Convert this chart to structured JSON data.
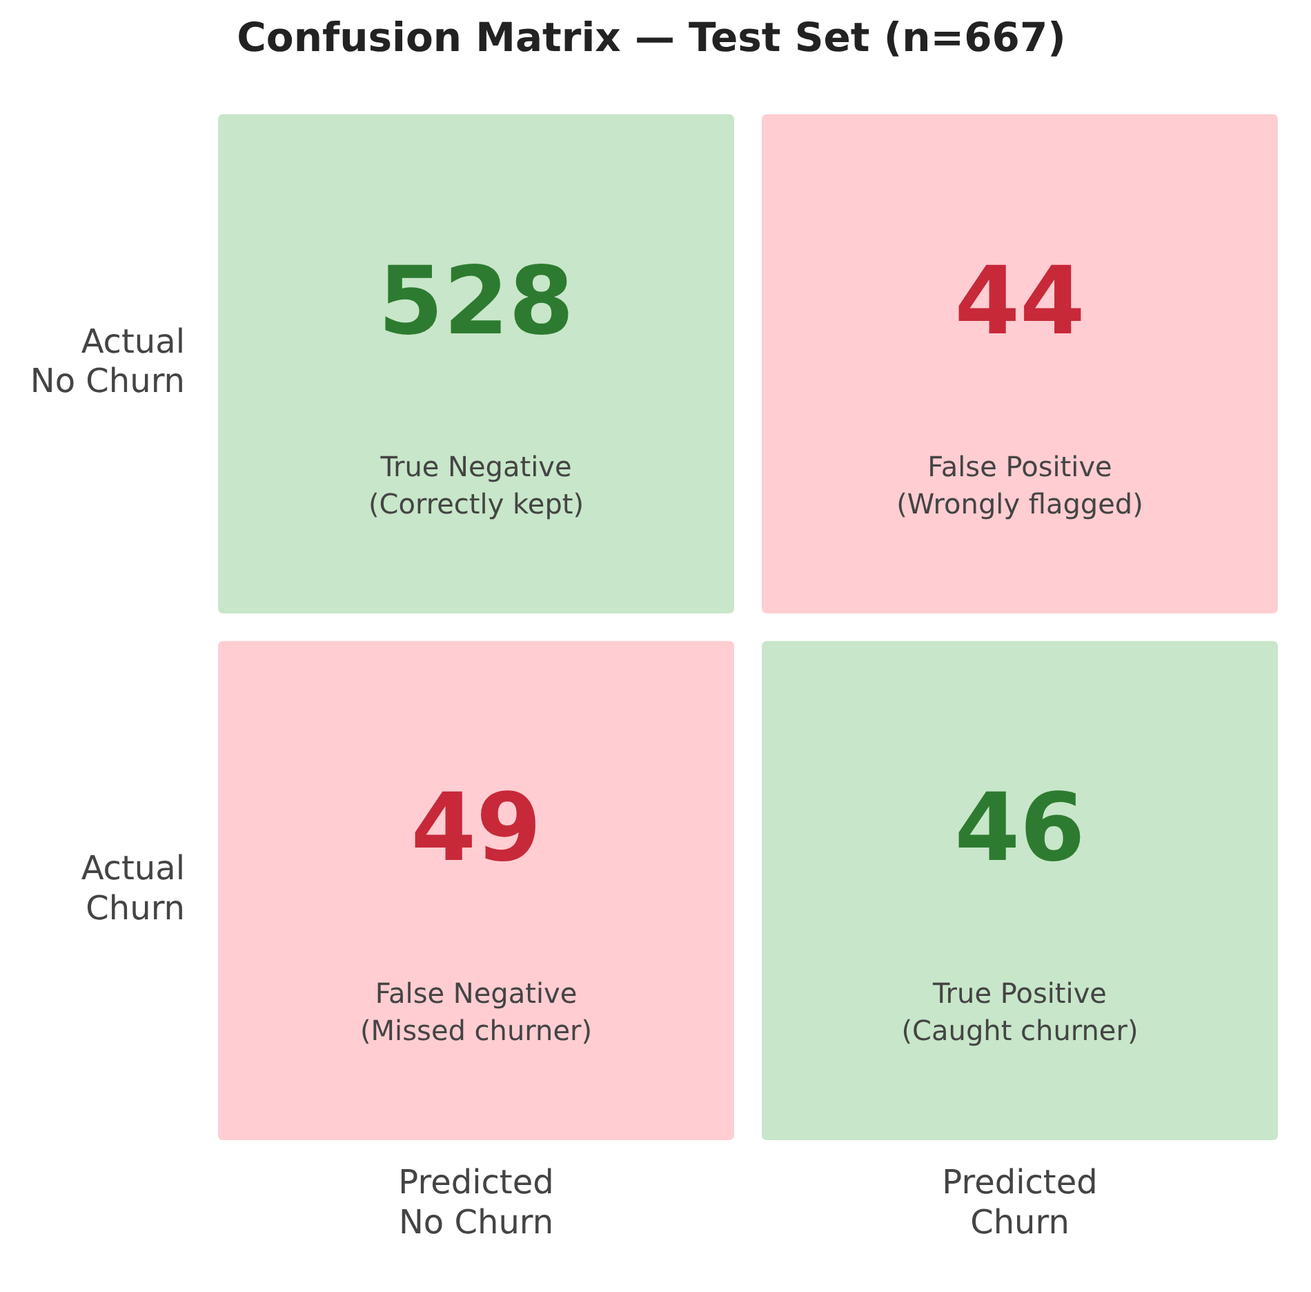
{
  "chart_data": {
    "type": "heatmap",
    "title": "Confusion Matrix — Test Set (n=667)",
    "categories": [
      "Predicted\nNo Churn",
      "Predicted\nChurn"
    ],
    "y_categories": [
      "Actual\nNo Churn",
      "Actual\nChurn"
    ],
    "cells": [
      [
        528,
        44
      ],
      [
        49,
        46
      ]
    ],
    "cell_labels": [
      [
        "528\nTrue Negative\n(Correctly kept)",
        "44\nFalse Positive\n(Wrongly flagged)"
      ],
      [
        "49\nFalse Negative\n(Missed churner)",
        "46\nTrue Positive\n(Caught churner)"
      ]
    ],
    "colors": [
      [
        "#c8e6c9",
        "#ffcdd2"
      ],
      [
        "#ffcdd2",
        "#c8e6c9"
      ]
    ]
  }
}
